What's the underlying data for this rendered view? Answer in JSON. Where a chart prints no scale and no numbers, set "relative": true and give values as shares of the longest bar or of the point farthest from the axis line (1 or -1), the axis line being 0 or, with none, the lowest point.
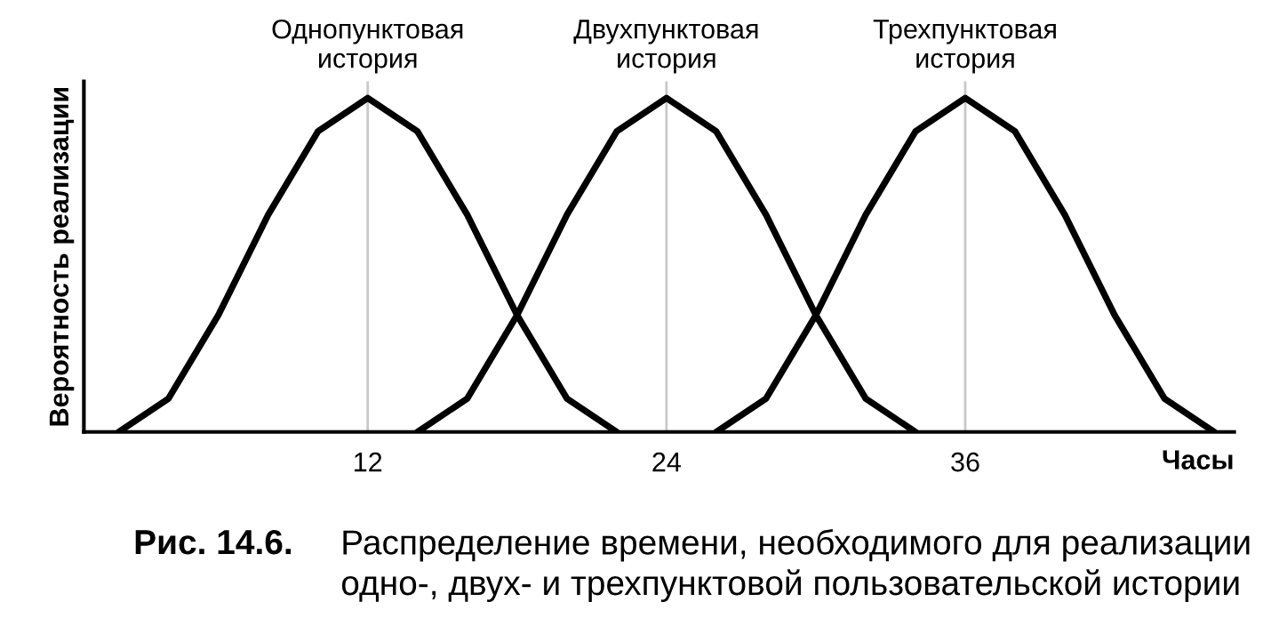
{
  "chart_data": {
    "type": "line",
    "relative": true,
    "xlabel": "Часы",
    "ylabel": "Вероятность реализации",
    "xlim": [
      0.6,
      46.8
    ],
    "xticks": [
      12,
      24,
      36
    ],
    "grid": false,
    "legend": false,
    "marker": "none",
    "line_style": "solid",
    "series": [
      {
        "color": "#000000",
        "x": [
          2,
          4,
          6,
          8,
          10,
          12,
          14,
          16,
          18,
          20,
          22
        ],
        "values": [
          0,
          0.1,
          0.35,
          0.65,
          0.9,
          1,
          0.9,
          0.65,
          0.35,
          0.1,
          0
        ]
      },
      {
        "color": "#000000",
        "x": [
          14,
          16,
          18,
          20,
          22,
          24,
          26,
          28,
          30,
          32,
          34
        ],
        "values": [
          0,
          0.1,
          0.35,
          0.65,
          0.9,
          1,
          0.9,
          0.65,
          0.35,
          0.1,
          0
        ]
      },
      {
        "color": "#000000",
        "x": [
          26,
          28,
          30,
          32,
          34,
          36,
          38,
          40,
          42,
          44,
          46
        ],
        "values": [
          0,
          0.1,
          0.35,
          0.65,
          0.9,
          1,
          0.9,
          0.65,
          0.35,
          0.1,
          0
        ]
      }
    ],
    "ref_lines": [
      {
        "axis": "x",
        "value": 12,
        "color": "#c8c8c8"
      },
      {
        "axis": "x",
        "value": 24,
        "color": "#c8c8c8"
      },
      {
        "axis": "x",
        "value": 36,
        "color": "#c8c8c8"
      }
    ],
    "annotations": [
      {
        "text": "Однопунктовая\nистория",
        "x": 12,
        "y": 1
      },
      {
        "text": "Двухпунктовая\nистория",
        "x": 24,
        "y": 1
      },
      {
        "text": "Трехпунктовая\nистория",
        "x": 36,
        "y": 1
      },
      "Рис. 14.6.",
      "Распределение времени, необходимого для реализации\nодно-, двух- и трехпунктовой пользовательской истории"
    ]
  }
}
